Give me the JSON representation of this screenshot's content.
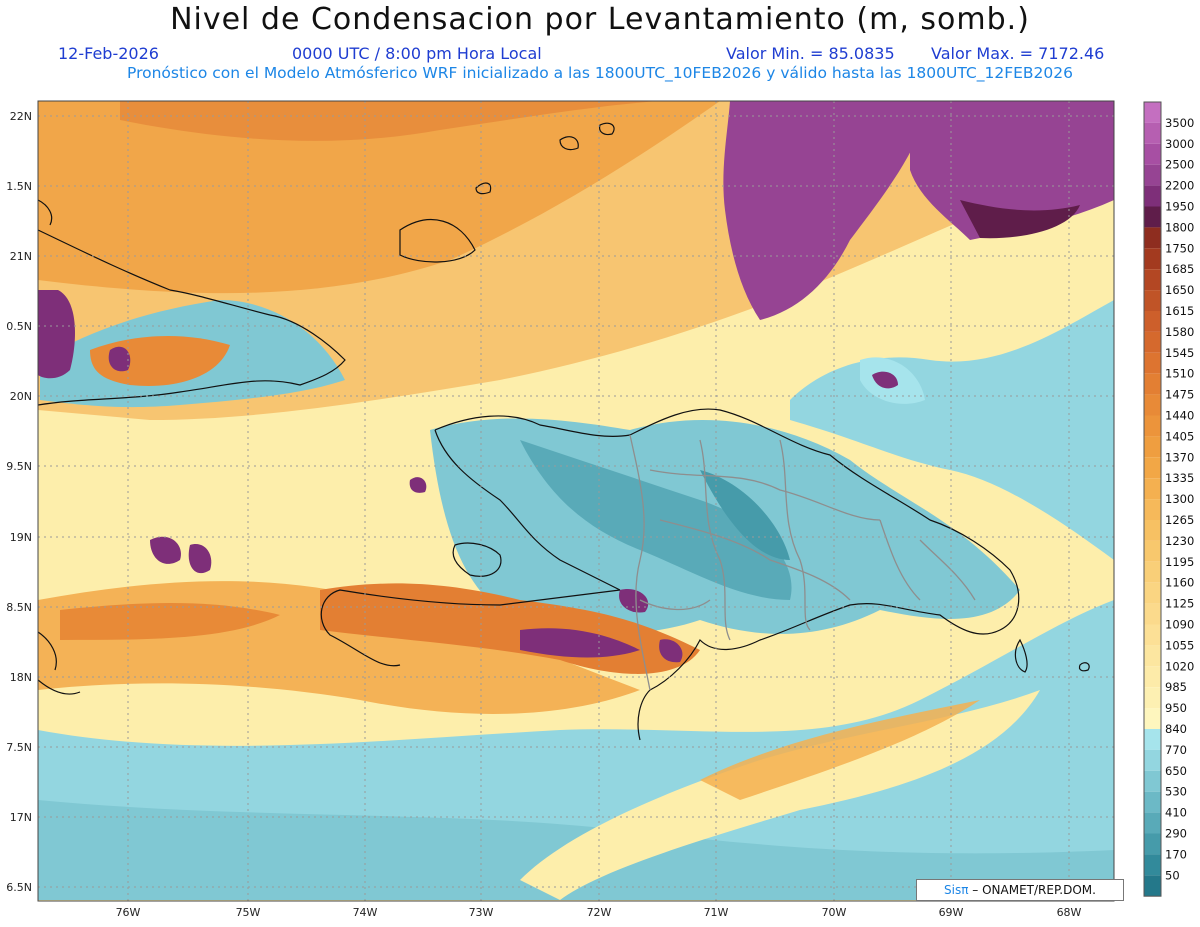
{
  "header": {
    "title": "Nivel de Condensacion por Levantamiento (m, somb.)",
    "date": "12-Feb-2026",
    "time": "0000 UTC / 8:00 pm Hora Local",
    "min_value": "Valor Min. = 85.0835",
    "max_value": "Valor Max. = 7172.46",
    "forecast_info": "Pronóstico con el Modelo Atmósferico WRF inicializado a las 1800UTC_10FEB2026 y válido hasta las  1800UTC_12FEB2026"
  },
  "axes": {
    "lat_labels": [
      "22N",
      "1.5N",
      "21N",
      "0.5N",
      "20N",
      "9.5N",
      "19N",
      "8.5N",
      "18N",
      "7.5N",
      "17N",
      "6.5N"
    ],
    "lon_labels": [
      "76W",
      "75W",
      "74W",
      "73W",
      "72W",
      "71W",
      "70W",
      "69W",
      "68W"
    ]
  },
  "colorbar": {
    "levels": [
      {
        "label": "3500",
        "color": "#c46fc0"
      },
      {
        "label": "3000",
        "color": "#b65fb1"
      },
      {
        "label": "2500",
        "color": "#a74fa3"
      },
      {
        "label": "2200",
        "color": "#964493"
      },
      {
        "label": "1950",
        "color": "#7e2f79"
      },
      {
        "label": "1800",
        "color": "#5f1d4a"
      },
      {
        "label": "1750",
        "color": "#8e2d1f"
      },
      {
        "label": "1685",
        "color": "#a33a1f"
      },
      {
        "label": "1650",
        "color": "#b34723"
      },
      {
        "label": "1615",
        "color": "#c05427"
      },
      {
        "label": "1580",
        "color": "#cd5f2b"
      },
      {
        "label": "1545",
        "color": "#d5692d"
      },
      {
        "label": "1510",
        "color": "#dd7430"
      },
      {
        "label": "1475",
        "color": "#e37f33"
      },
      {
        "label": "1440",
        "color": "#e88a37"
      },
      {
        "label": "1405",
        "color": "#ec943b"
      },
      {
        "label": "1370",
        "color": "#ef9e40"
      },
      {
        "label": "1335",
        "color": "#f2a746"
      },
      {
        "label": "1300",
        "color": "#f4b050"
      },
      {
        "label": "1265",
        "color": "#f6b95a"
      },
      {
        "label": "1230",
        "color": "#f7c163"
      },
      {
        "label": "1195",
        "color": "#f8c86d"
      },
      {
        "label": "1160",
        "color": "#f9cf78"
      },
      {
        "label": "1125",
        "color": "#fad582"
      },
      {
        "label": "1090",
        "color": "#fbda8c"
      },
      {
        "label": "1055",
        "color": "#fce096"
      },
      {
        "label": "1020",
        "color": "#fce6a0"
      },
      {
        "label": "985",
        "color": "#fdeba9"
      },
      {
        "label": "950",
        "color": "#fdf0b2"
      },
      {
        "label": "840",
        "color": "#fef6be"
      },
      {
        "label": "770",
        "color": "#a6e4ec"
      },
      {
        "label": "650",
        "color": "#93d6e0"
      },
      {
        "label": "530",
        "color": "#80c8d3"
      },
      {
        "label": "410",
        "color": "#6cb9c6"
      },
      {
        "label": "290",
        "color": "#59aab8"
      },
      {
        "label": "170",
        "color": "#469baa"
      },
      {
        "label": "50",
        "color": "#328a9b"
      },
      {
        "label": "",
        "color": "#24788a"
      }
    ]
  },
  "credit": {
    "brand": "Sisπ",
    "org": " – ONAMET/REP.DOM."
  }
}
